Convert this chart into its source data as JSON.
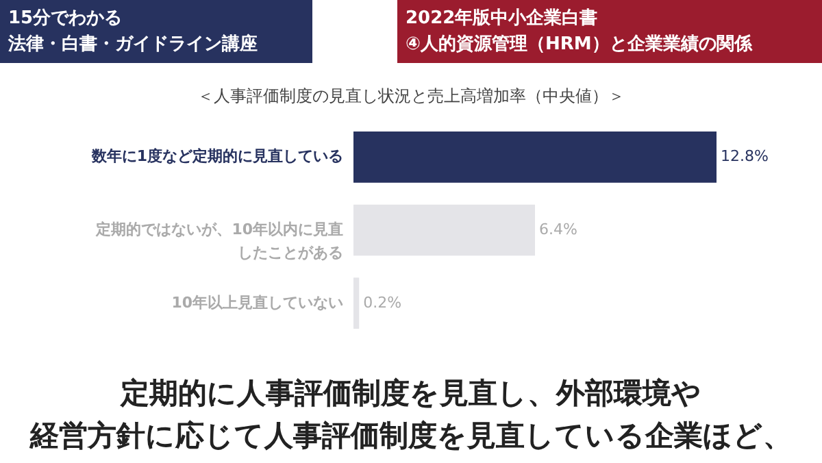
{
  "chart_data": {
    "type": "bar",
    "orientation": "horizontal",
    "title": "＜人事評価制度の見直し状況と売上高増加率（中央値）＞",
    "categories": [
      "数年に1度など定期的に見直している",
      "定期的ではないが、10年以内に見直したことがある",
      "10年以上見直していない"
    ],
    "values": [
      12.8,
      6.4,
      0.2
    ],
    "colors": [
      "#27325f",
      "#e4e4e8",
      "#e4e4e8"
    ],
    "value_labels": [
      "12.8%",
      "6.4%",
      "0.2%"
    ],
    "annotations": [
      "15分でわかる",
      "法律・白書・ガイドライン講座",
      "2022年版中小企業白書",
      "④人的資源管理（HRM）と企業業績の関係",
      "定期的に人事評価制度を見直し、外部環境や",
      "経営方針に応じて人事評価制度を見直している企業ほど、"
    ]
  }
}
